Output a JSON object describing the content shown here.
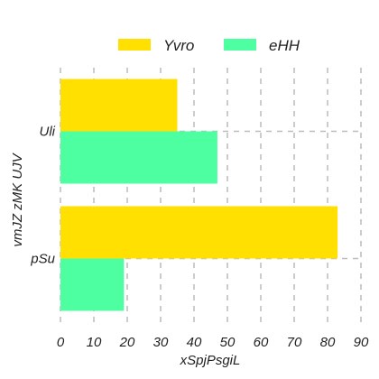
{
  "chart_data": {
    "type": "bar",
    "orientation": "horizontal",
    "categories": [
      "Uli",
      "pSu"
    ],
    "series": [
      {
        "name": "Yvro",
        "color": "#FFE000",
        "values": [
          35,
          83
        ]
      },
      {
        "name": "eHH",
        "color": "#4DFFA0",
        "values": [
          47,
          19
        ]
      }
    ],
    "xlabel": "xSpjPsgiL",
    "ylabel": "vmJZ zMK UJV",
    "xlim": [
      0,
      90
    ],
    "xticks": [
      0,
      10,
      20,
      30,
      40,
      50,
      60,
      70,
      80,
      90
    ],
    "grid": true,
    "grid_style": "dashed",
    "grid_color": "#BBBBBB",
    "legend_position": "top-center"
  }
}
